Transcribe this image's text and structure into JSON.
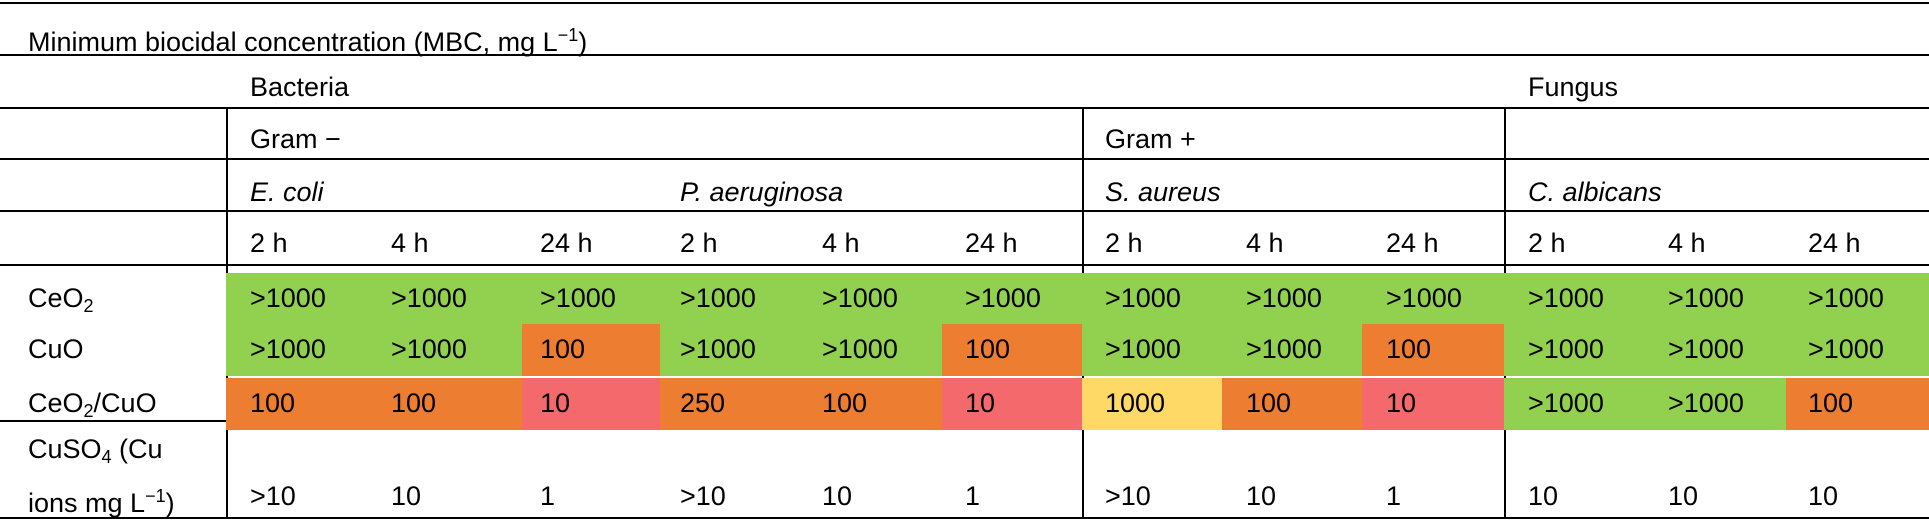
{
  "title_prefix": "Minimum biocidal  concentration (MBC, mg L",
  "title_sup": "−1",
  "title_suffix": ")",
  "groups": {
    "bacteria": "Bacteria",
    "fungus": "Fungus",
    "gram_neg": "Gram −",
    "gram_pos": "Gram +"
  },
  "organisms": [
    "E. coli",
    "P. aeruginosa",
    "S. aureus",
    "C. albicans"
  ],
  "time_points": [
    "2 h",
    "4 h",
    "24 h",
    "2 h",
    "4 h",
    "24 h",
    "2 h",
    "4 h",
    "24 h",
    "2 h",
    "4 h",
    "24 h"
  ],
  "rows": [
    {
      "label_main": "CeO",
      "label_sub": "2",
      "label_tail": "",
      "values": [
        ">1000",
        ">1000",
        ">1000",
        ">1000",
        ">1000",
        ">1000",
        ">1000",
        ">1000",
        ">1000",
        ">1000",
        ">1000",
        ">1000"
      ],
      "colors": [
        "#92d050",
        "#92d050",
        "#92d050",
        "#92d050",
        "#92d050",
        "#92d050",
        "#92d050",
        "#92d050",
        "#92d050",
        "#92d050",
        "#92d050",
        "#92d050"
      ]
    },
    {
      "label_main": "CuO",
      "label_sub": "",
      "label_tail": "",
      "values": [
        ">1000",
        ">1000",
        "100",
        ">1000",
        ">1000",
        "100",
        ">1000",
        ">1000",
        "100",
        ">1000",
        ">1000",
        ">1000"
      ],
      "colors": [
        "#92d050",
        "#92d050",
        "#ed7d31",
        "#92d050",
        "#92d050",
        "#ed7d31",
        "#92d050",
        "#92d050",
        "#ed7d31",
        "#92d050",
        "#92d050",
        "#92d050"
      ]
    },
    {
      "label_main": "CeO",
      "label_sub": "2",
      "label_tail": "/CuO",
      "values": [
        "100",
        "100",
        "10",
        "250",
        "100",
        "10",
        "1000",
        "100",
        "10",
        ">1000",
        ">1000",
        "100"
      ],
      "colors": [
        "#ed7d31",
        "#ed7d31",
        "#f4696b",
        "#ed7d31",
        "#ed7d31",
        "#f4696b",
        "#ffd966",
        "#ed7d31",
        "#f4696b",
        "#92d050",
        "#92d050",
        "#ed7d31"
      ]
    }
  ],
  "cuso4": {
    "line1_main": "CuSO",
    "line1_sub": "4",
    "line1_tail": " (Cu",
    "line2_main": "ions mg L",
    "line2_sup": "−1",
    "line2_tail": ")",
    "values": [
      ">10",
      "10",
      "1",
      ">10",
      "10",
      "1",
      ">10",
      "10",
      "1",
      "10",
      "10",
      "10"
    ]
  }
}
